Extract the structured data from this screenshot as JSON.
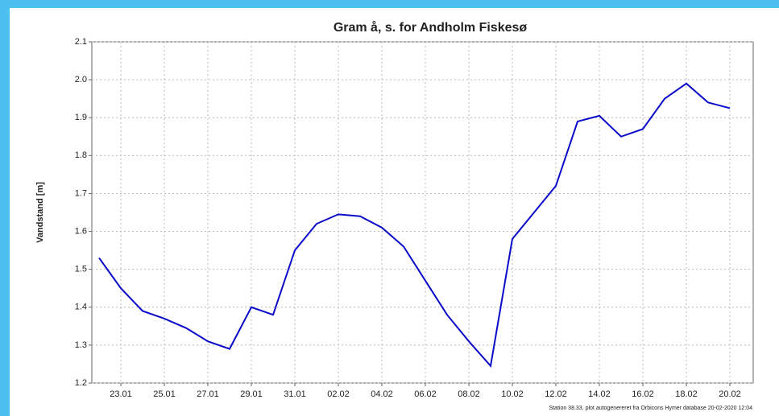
{
  "chart_data": {
    "type": "line",
    "title": "Gram å, s. for Andholm Fiskesø",
    "y_label": "Vandstand [m]",
    "footnote": "Station 38.33, plot autogenereret fra Orbicons Hymer database 20-02-2020 12:04",
    "x": [
      "22.01",
      "23.01",
      "24.01",
      "25.01",
      "26.01",
      "27.01",
      "28.01",
      "29.01",
      "30.01",
      "31.01",
      "01.02",
      "02.02",
      "03.02",
      "04.02",
      "05.02",
      "06.02",
      "07.02",
      "08.02",
      "09.02",
      "10.02",
      "11.02",
      "12.02",
      "13.02",
      "14.02",
      "15.02",
      "16.02",
      "17.02",
      "18.02",
      "19.02",
      "20.02"
    ],
    "series": [
      {
        "name": "Vandstand",
        "color": "#0a0ac8",
        "values": [
          1.53,
          1.45,
          1.39,
          1.37,
          1.345,
          1.31,
          1.29,
          1.4,
          1.38,
          1.55,
          1.62,
          1.645,
          1.64,
          1.61,
          1.56,
          1.47,
          1.38,
          1.31,
          1.245,
          1.58,
          1.65,
          1.72,
          1.89,
          1.905,
          1.85,
          1.87,
          1.95,
          1.99,
          1.94,
          1.925
        ]
      }
    ],
    "xticks": [
      "23.01",
      "25.01",
      "27.01",
      "29.01",
      "31.01",
      "02.02",
      "04.02",
      "06.02",
      "08.02",
      "10.02",
      "12.02",
      "14.02",
      "16.02",
      "18.02",
      "20.02"
    ],
    "ylim": [
      1.2,
      2.1
    ],
    "yticks": [
      1.2,
      1.3,
      1.4,
      1.5,
      1.6,
      1.7,
      1.8,
      1.9,
      {
        "value": 2,
        "label": "2.0"
      },
      2.1
    ],
    "grid": true
  }
}
